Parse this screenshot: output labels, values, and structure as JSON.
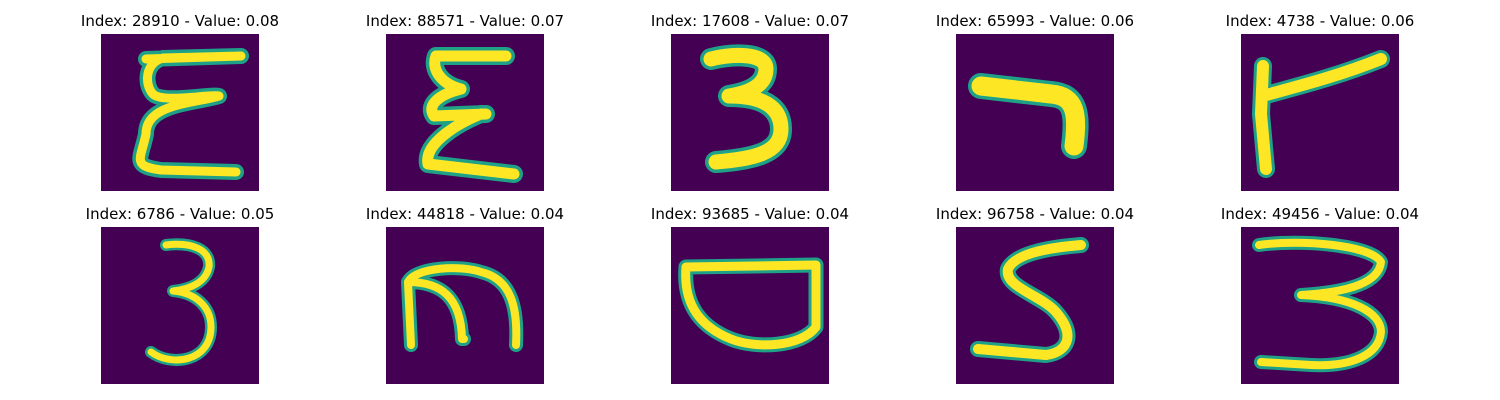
{
  "panels": [
    {
      "title": "Index: 28910 - Value: 0.08",
      "glyph": "epsilon-E"
    },
    {
      "title": "Index: 88571 - Value: 0.07",
      "glyph": "sigma-like"
    },
    {
      "title": "Index: 17608 - Value: 0.07",
      "glyph": "three-bold"
    },
    {
      "title": "Index: 65993 - Value: 0.06",
      "glyph": "hook"
    },
    {
      "title": "Index: 4738 - Value: 0.06",
      "glyph": "r-shape"
    },
    {
      "title": "Index: 6786 - Value: 0.05",
      "glyph": "three-thin"
    },
    {
      "title": "Index: 44818 - Value: 0.04",
      "glyph": "m-shape"
    },
    {
      "title": "Index: 93685 - Value: 0.04",
      "glyph": "d-bowl"
    },
    {
      "title": "Index: 96758 - Value: 0.04",
      "glyph": "five-s"
    },
    {
      "title": "Index: 49456 - Value: 0.04",
      "glyph": "three-wide"
    }
  ],
  "colors": {
    "background": "#440154",
    "stroke": "#fde725",
    "edge": "#1fa188"
  }
}
